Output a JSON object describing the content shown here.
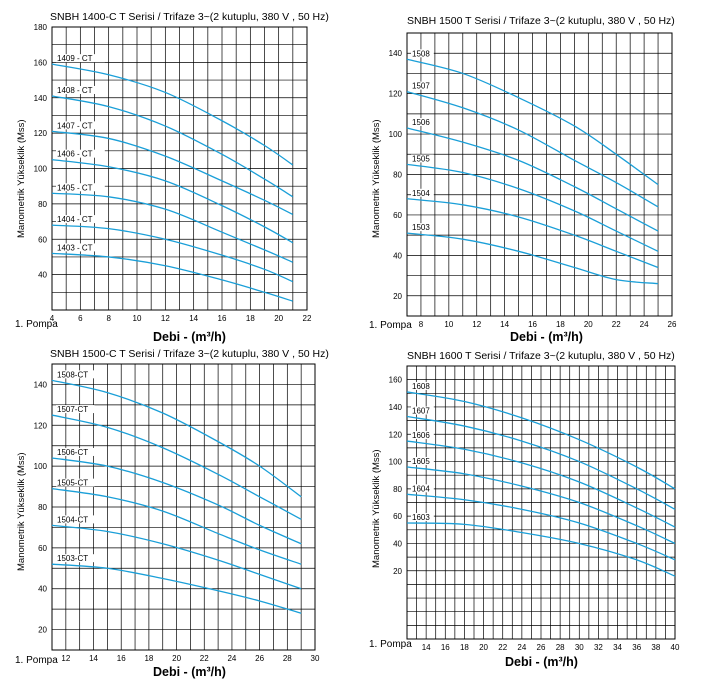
{
  "chart_data": [
    {
      "type": "line",
      "title": "SNBH 1400-C T Serisi / Trifaze 3~(2 kutuplu, 380 V , 50 Hz)",
      "xlabel": "Debi - (m³/h)",
      "ylabel": "Manometrik Yükseklik (Mss)",
      "pump_label": "1. Pompa",
      "xlim": [
        4,
        22
      ],
      "ylim": [
        20,
        180
      ],
      "xticks": [
        4,
        6,
        8,
        10,
        12,
        14,
        16,
        18,
        20,
        22
      ],
      "yticks": [
        40,
        60,
        80,
        100,
        120,
        140,
        160,
        180
      ],
      "grid": true,
      "series": [
        {
          "name": "1409 - CT",
          "x": [
            4,
            8,
            12,
            16,
            19,
            21
          ],
          "y": [
            159,
            153,
            143,
            127,
            113,
            102
          ]
        },
        {
          "name": "1408 - CT",
          "x": [
            4,
            8,
            12,
            16,
            19,
            21
          ],
          "y": [
            141,
            135,
            124,
            108,
            94,
            84
          ]
        },
        {
          "name": "1407 - CT",
          "x": [
            4,
            8,
            12,
            16,
            19,
            21
          ],
          "y": [
            121,
            117,
            107,
            93,
            82,
            74
          ]
        },
        {
          "name": "1406 - CT",
          "x": [
            4,
            8,
            12,
            16,
            19,
            21
          ],
          "y": [
            105,
            101,
            93,
            79,
            67,
            58
          ]
        },
        {
          "name": "1405 - CT",
          "x": [
            4,
            8,
            12,
            16,
            19,
            21
          ],
          "y": [
            86,
            84,
            77,
            64,
            54,
            47
          ]
        },
        {
          "name": "1404 - CT",
          "x": [
            4,
            8,
            12,
            16,
            19,
            21
          ],
          "y": [
            68,
            66,
            60,
            51,
            43,
            36
          ]
        },
        {
          "name": "1403 - CT",
          "x": [
            4,
            8,
            12,
            16,
            19,
            21
          ],
          "y": [
            52,
            50,
            45,
            37,
            30,
            25
          ]
        }
      ]
    },
    {
      "type": "line",
      "title": "SNBH 1500 T Serisi / Trifaze 3~(2 kutuplu, 380 V , 50 Hz)",
      "xlabel": "Debi - (m³/h)",
      "ylabel": "Manometrik Yükseklik (Mss)",
      "pump_label": "1. Pompa",
      "xlim": [
        7,
        26
      ],
      "ylim": [
        10,
        150
      ],
      "xticks": [
        8,
        10,
        12,
        14,
        16,
        18,
        20,
        22,
        24,
        26
      ],
      "yticks": [
        20,
        40,
        60,
        80,
        100,
        120,
        140
      ],
      "grid": true,
      "series": [
        {
          "name": "1508",
          "x": [
            7,
            11,
            15,
            19,
            22,
            25
          ],
          "y": [
            137,
            130,
            118,
            104,
            90,
            75
          ]
        },
        {
          "name": "1507",
          "x": [
            7,
            11,
            15,
            19,
            22,
            25
          ],
          "y": [
            121,
            113,
            102,
            87,
            76,
            64
          ]
        },
        {
          "name": "1506",
          "x": [
            7,
            11,
            15,
            19,
            22,
            25
          ],
          "y": [
            103,
            96,
            87,
            74,
            63,
            52
          ]
        },
        {
          "name": "1505",
          "x": [
            7,
            11,
            15,
            19,
            22,
            25
          ],
          "y": [
            85,
            81,
            73,
            62,
            52,
            42
          ]
        },
        {
          "name": "1504",
          "x": [
            7,
            11,
            15,
            19,
            22,
            25
          ],
          "y": [
            68,
            65,
            59,
            50,
            42,
            34
          ]
        },
        {
          "name": "1503",
          "x": [
            7,
            11,
            15,
            19,
            22,
            25
          ],
          "y": [
            51,
            48,
            42,
            34,
            28,
            26
          ]
        }
      ]
    },
    {
      "type": "line",
      "title": "SNBH 1500-C T Serisi / Trifaze 3~(2 kutuplu, 380 V , 50 Hz)",
      "xlabel": "Debi - (m³/h)",
      "ylabel": "Manometrik Yükseklik (Mss)",
      "pump_label": "1. Pompa",
      "xlim": [
        11,
        30
      ],
      "ylim": [
        10,
        150
      ],
      "xticks": [
        12,
        14,
        16,
        18,
        20,
        22,
        24,
        26,
        28,
        30
      ],
      "yticks": [
        20,
        40,
        60,
        80,
        100,
        120,
        140
      ],
      "grid": true,
      "series": [
        {
          "name": "1508-CT",
          "x": [
            11,
            15,
            19,
            23,
            26,
            29
          ],
          "y": [
            142,
            136,
            126,
            112,
            100,
            85
          ]
        },
        {
          "name": "1507-CT",
          "x": [
            11,
            15,
            19,
            23,
            26,
            29
          ],
          "y": [
            125,
            119,
            109,
            96,
            85,
            74
          ]
        },
        {
          "name": "1506-CT",
          "x": [
            11,
            15,
            19,
            23,
            26,
            29
          ],
          "y": [
            104,
            100,
            92,
            81,
            71,
            62
          ]
        },
        {
          "name": "1505-CT",
          "x": [
            11,
            15,
            19,
            23,
            26,
            29
          ],
          "y": [
            89,
            85,
            78,
            67,
            59,
            52
          ]
        },
        {
          "name": "1504-CT",
          "x": [
            11,
            15,
            19,
            23,
            26,
            29
          ],
          "y": [
            71,
            68,
            62,
            54,
            47,
            40
          ]
        },
        {
          "name": "1503-CT",
          "x": [
            11,
            15,
            19,
            23,
            26,
            29
          ],
          "y": [
            52,
            50,
            45,
            39,
            34,
            28
          ]
        }
      ]
    },
    {
      "type": "line",
      "title": "SNBH 1600 T Serisi / Trifaze 3~(2 kutuplu, 380 V , 50 Hz)",
      "xlabel": "Debi - (m³/h)",
      "ylabel": "Manometrik Yükseklik (Mss)",
      "pump_label": "1. Pompa",
      "xlim": [
        12,
        40
      ],
      "ylim": [
        -30,
        170
      ],
      "xticks": [
        14,
        16,
        18,
        20,
        22,
        24,
        26,
        28,
        30,
        32,
        34,
        36,
        38,
        40
      ],
      "yticks": [
        20,
        40,
        60,
        80,
        100,
        120,
        140,
        160
      ],
      "grid": true,
      "series": [
        {
          "name": "1608",
          "x": [
            12,
            18,
            24,
            30,
            36,
            40
          ],
          "y": [
            151,
            144,
            132,
            116,
            96,
            80
          ]
        },
        {
          "name": "1607",
          "x": [
            12,
            18,
            24,
            30,
            36,
            40
          ],
          "y": [
            133,
            126,
            115,
            100,
            80,
            65
          ]
        },
        {
          "name": "1606",
          "x": [
            12,
            18,
            24,
            30,
            36,
            40
          ],
          "y": [
            115,
            109,
            99,
            85,
            66,
            52
          ]
        },
        {
          "name": "1605",
          "x": [
            12,
            18,
            24,
            30,
            36,
            40
          ],
          "y": [
            96,
            91,
            82,
            70,
            53,
            40
          ]
        },
        {
          "name": "1604",
          "x": [
            12,
            18,
            24,
            30,
            36,
            40
          ],
          "y": [
            76,
            72,
            65,
            55,
            40,
            28
          ]
        },
        {
          "name": "1603",
          "x": [
            12,
            18,
            24,
            30,
            36,
            40
          ],
          "y": [
            55,
            54,
            48,
            40,
            28,
            16
          ]
        }
      ]
    }
  ],
  "colors": {
    "curve": "#1a9fd8",
    "grid": "#000000",
    "text": "#000000"
  }
}
